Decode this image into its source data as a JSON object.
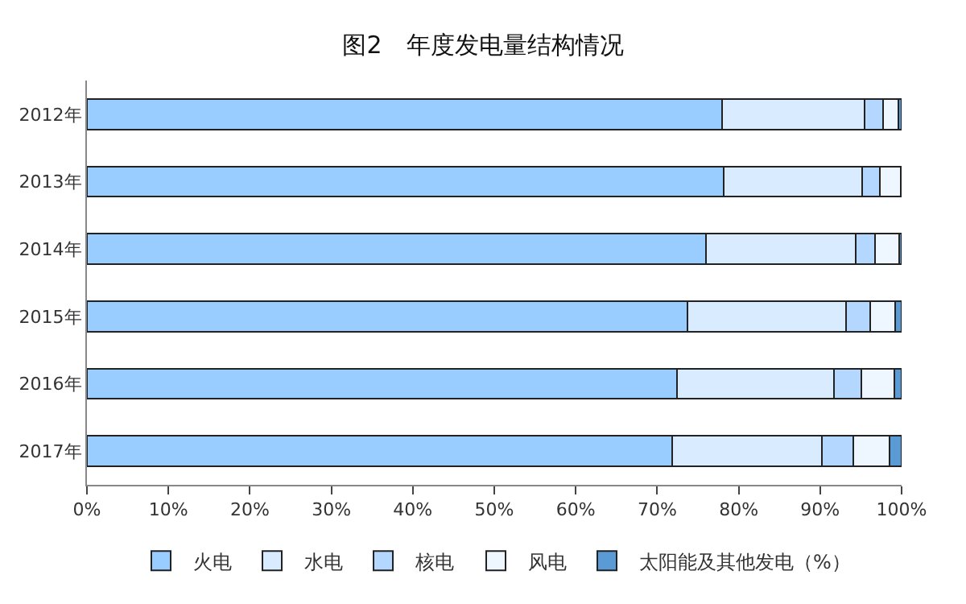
{
  "chart_data": {
    "type": "bar",
    "orientation": "horizontal",
    "stacked": true,
    "title": "图2　年度发电量结构情况",
    "categories": [
      "2012年",
      "2013年",
      "2014年",
      "2015年",
      "2016年",
      "2017年"
    ],
    "series": [
      {
        "name": "火电",
        "color": "#99ccff",
        "values": [
          78.0,
          78.2,
          76.0,
          73.7,
          72.4,
          71.8
        ]
      },
      {
        "name": "水电",
        "color": "#d9ecff",
        "values": [
          17.5,
          17.0,
          18.4,
          19.5,
          19.3,
          18.4
        ]
      },
      {
        "name": "核电",
        "color": "#b3d7ff",
        "values": [
          2.2,
          2.1,
          2.3,
          2.9,
          3.4,
          3.9
        ]
      },
      {
        "name": "风电",
        "color": "#eef6ff",
        "values": [
          1.9,
          2.6,
          3.0,
          3.1,
          4.0,
          4.4
        ]
      },
      {
        "name": "太阳能及其他发电（%）",
        "color": "#5b9bd5",
        "values": [
          0.4,
          0.1,
          0.3,
          0.8,
          0.9,
          1.5
        ]
      }
    ],
    "xlim": [
      0,
      100
    ],
    "xticks": [
      {
        "value": 0,
        "label": "0%"
      },
      {
        "value": 10,
        "label": "10%"
      },
      {
        "value": 20,
        "label": "20%"
      },
      {
        "value": 30,
        "label": "30%"
      },
      {
        "value": 40,
        "label": "40%"
      },
      {
        "value": 50,
        "label": "50%"
      },
      {
        "value": 60,
        "label": "60%"
      },
      {
        "value": 70,
        "label": "70%"
      },
      {
        "value": 80,
        "label": "80%"
      },
      {
        "value": 90,
        "label": "90%"
      },
      {
        "value": 100,
        "label": "100%"
      }
    ],
    "legend": "bottom"
  }
}
